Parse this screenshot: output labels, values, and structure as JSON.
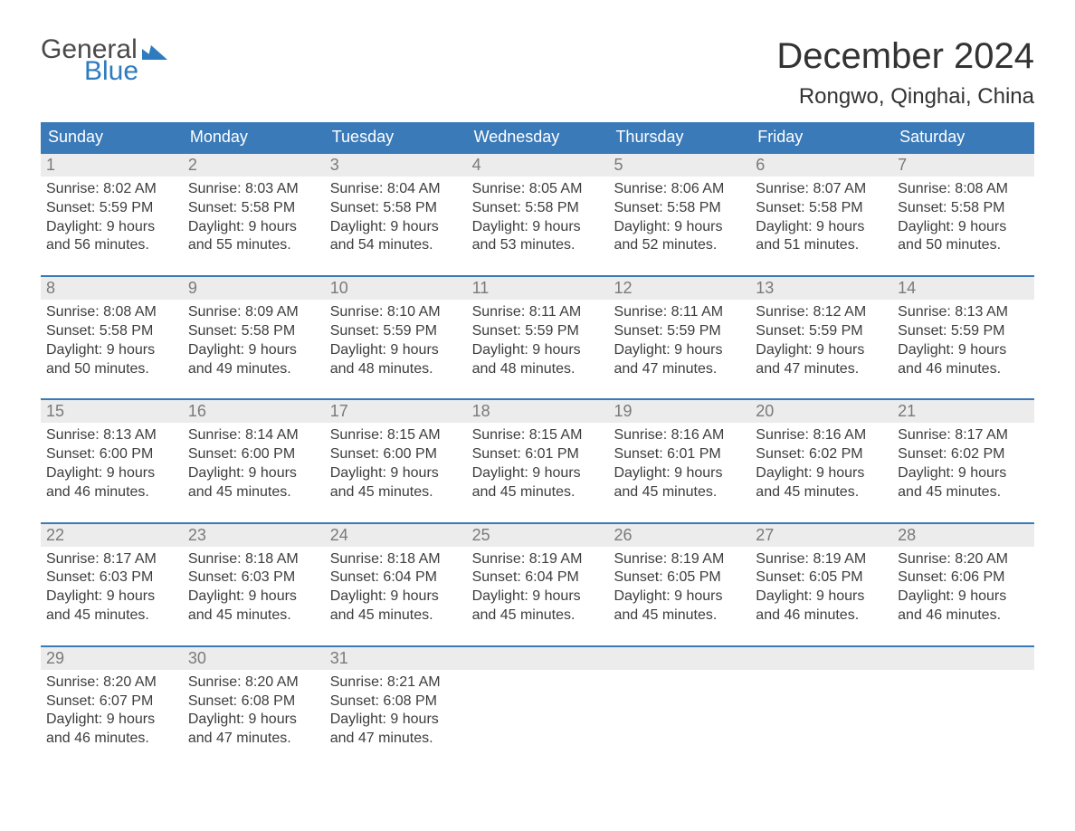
{
  "logo": {
    "text_general": "General",
    "text_blue": "Blue"
  },
  "title": "December 2024",
  "location": "Rongwo, Qinghai, China",
  "colors": {
    "header_bg": "#3a7ab8",
    "header_text": "#ffffff",
    "daynum_bg": "#ececec",
    "daynum_text": "#7a7a7a",
    "body_text": "#3d3d3d",
    "rule": "#3a7ab8",
    "logo_gray": "#4a4a4a",
    "logo_blue": "#2e7bbf"
  },
  "days_of_week": [
    "Sunday",
    "Monday",
    "Tuesday",
    "Wednesday",
    "Thursday",
    "Friday",
    "Saturday"
  ],
  "weeks": [
    [
      {
        "n": "1",
        "sr": "Sunrise: 8:02 AM",
        "ss": "Sunset: 5:59 PM",
        "d1": "Daylight: 9 hours",
        "d2": "and 56 minutes."
      },
      {
        "n": "2",
        "sr": "Sunrise: 8:03 AM",
        "ss": "Sunset: 5:58 PM",
        "d1": "Daylight: 9 hours",
        "d2": "and 55 minutes."
      },
      {
        "n": "3",
        "sr": "Sunrise: 8:04 AM",
        "ss": "Sunset: 5:58 PM",
        "d1": "Daylight: 9 hours",
        "d2": "and 54 minutes."
      },
      {
        "n": "4",
        "sr": "Sunrise: 8:05 AM",
        "ss": "Sunset: 5:58 PM",
        "d1": "Daylight: 9 hours",
        "d2": "and 53 minutes."
      },
      {
        "n": "5",
        "sr": "Sunrise: 8:06 AM",
        "ss": "Sunset: 5:58 PM",
        "d1": "Daylight: 9 hours",
        "d2": "and 52 minutes."
      },
      {
        "n": "6",
        "sr": "Sunrise: 8:07 AM",
        "ss": "Sunset: 5:58 PM",
        "d1": "Daylight: 9 hours",
        "d2": "and 51 minutes."
      },
      {
        "n": "7",
        "sr": "Sunrise: 8:08 AM",
        "ss": "Sunset: 5:58 PM",
        "d1": "Daylight: 9 hours",
        "d2": "and 50 minutes."
      }
    ],
    [
      {
        "n": "8",
        "sr": "Sunrise: 8:08 AM",
        "ss": "Sunset: 5:58 PM",
        "d1": "Daylight: 9 hours",
        "d2": "and 50 minutes."
      },
      {
        "n": "9",
        "sr": "Sunrise: 8:09 AM",
        "ss": "Sunset: 5:58 PM",
        "d1": "Daylight: 9 hours",
        "d2": "and 49 minutes."
      },
      {
        "n": "10",
        "sr": "Sunrise: 8:10 AM",
        "ss": "Sunset: 5:59 PM",
        "d1": "Daylight: 9 hours",
        "d2": "and 48 minutes."
      },
      {
        "n": "11",
        "sr": "Sunrise: 8:11 AM",
        "ss": "Sunset: 5:59 PM",
        "d1": "Daylight: 9 hours",
        "d2": "and 48 minutes."
      },
      {
        "n": "12",
        "sr": "Sunrise: 8:11 AM",
        "ss": "Sunset: 5:59 PM",
        "d1": "Daylight: 9 hours",
        "d2": "and 47 minutes."
      },
      {
        "n": "13",
        "sr": "Sunrise: 8:12 AM",
        "ss": "Sunset: 5:59 PM",
        "d1": "Daylight: 9 hours",
        "d2": "and 47 minutes."
      },
      {
        "n": "14",
        "sr": "Sunrise: 8:13 AM",
        "ss": "Sunset: 5:59 PM",
        "d1": "Daylight: 9 hours",
        "d2": "and 46 minutes."
      }
    ],
    [
      {
        "n": "15",
        "sr": "Sunrise: 8:13 AM",
        "ss": "Sunset: 6:00 PM",
        "d1": "Daylight: 9 hours",
        "d2": "and 46 minutes."
      },
      {
        "n": "16",
        "sr": "Sunrise: 8:14 AM",
        "ss": "Sunset: 6:00 PM",
        "d1": "Daylight: 9 hours",
        "d2": "and 45 minutes."
      },
      {
        "n": "17",
        "sr": "Sunrise: 8:15 AM",
        "ss": "Sunset: 6:00 PM",
        "d1": "Daylight: 9 hours",
        "d2": "and 45 minutes."
      },
      {
        "n": "18",
        "sr": "Sunrise: 8:15 AM",
        "ss": "Sunset: 6:01 PM",
        "d1": "Daylight: 9 hours",
        "d2": "and 45 minutes."
      },
      {
        "n": "19",
        "sr": "Sunrise: 8:16 AM",
        "ss": "Sunset: 6:01 PM",
        "d1": "Daylight: 9 hours",
        "d2": "and 45 minutes."
      },
      {
        "n": "20",
        "sr": "Sunrise: 8:16 AM",
        "ss": "Sunset: 6:02 PM",
        "d1": "Daylight: 9 hours",
        "d2": "and 45 minutes."
      },
      {
        "n": "21",
        "sr": "Sunrise: 8:17 AM",
        "ss": "Sunset: 6:02 PM",
        "d1": "Daylight: 9 hours",
        "d2": "and 45 minutes."
      }
    ],
    [
      {
        "n": "22",
        "sr": "Sunrise: 8:17 AM",
        "ss": "Sunset: 6:03 PM",
        "d1": "Daylight: 9 hours",
        "d2": "and 45 minutes."
      },
      {
        "n": "23",
        "sr": "Sunrise: 8:18 AM",
        "ss": "Sunset: 6:03 PM",
        "d1": "Daylight: 9 hours",
        "d2": "and 45 minutes."
      },
      {
        "n": "24",
        "sr": "Sunrise: 8:18 AM",
        "ss": "Sunset: 6:04 PM",
        "d1": "Daylight: 9 hours",
        "d2": "and 45 minutes."
      },
      {
        "n": "25",
        "sr": "Sunrise: 8:19 AM",
        "ss": "Sunset: 6:04 PM",
        "d1": "Daylight: 9 hours",
        "d2": "and 45 minutes."
      },
      {
        "n": "26",
        "sr": "Sunrise: 8:19 AM",
        "ss": "Sunset: 6:05 PM",
        "d1": "Daylight: 9 hours",
        "d2": "and 45 minutes."
      },
      {
        "n": "27",
        "sr": "Sunrise: 8:19 AM",
        "ss": "Sunset: 6:05 PM",
        "d1": "Daylight: 9 hours",
        "d2": "and 46 minutes."
      },
      {
        "n": "28",
        "sr": "Sunrise: 8:20 AM",
        "ss": "Sunset: 6:06 PM",
        "d1": "Daylight: 9 hours",
        "d2": "and 46 minutes."
      }
    ],
    [
      {
        "n": "29",
        "sr": "Sunrise: 8:20 AM",
        "ss": "Sunset: 6:07 PM",
        "d1": "Daylight: 9 hours",
        "d2": "and 46 minutes."
      },
      {
        "n": "30",
        "sr": "Sunrise: 8:20 AM",
        "ss": "Sunset: 6:08 PM",
        "d1": "Daylight: 9 hours",
        "d2": "and 47 minutes."
      },
      {
        "n": "31",
        "sr": "Sunrise: 8:21 AM",
        "ss": "Sunset: 6:08 PM",
        "d1": "Daylight: 9 hours",
        "d2": "and 47 minutes."
      },
      {
        "n": "",
        "sr": "",
        "ss": "",
        "d1": "",
        "d2": ""
      },
      {
        "n": "",
        "sr": "",
        "ss": "",
        "d1": "",
        "d2": ""
      },
      {
        "n": "",
        "sr": "",
        "ss": "",
        "d1": "",
        "d2": ""
      },
      {
        "n": "",
        "sr": "",
        "ss": "",
        "d1": "",
        "d2": ""
      }
    ]
  ]
}
